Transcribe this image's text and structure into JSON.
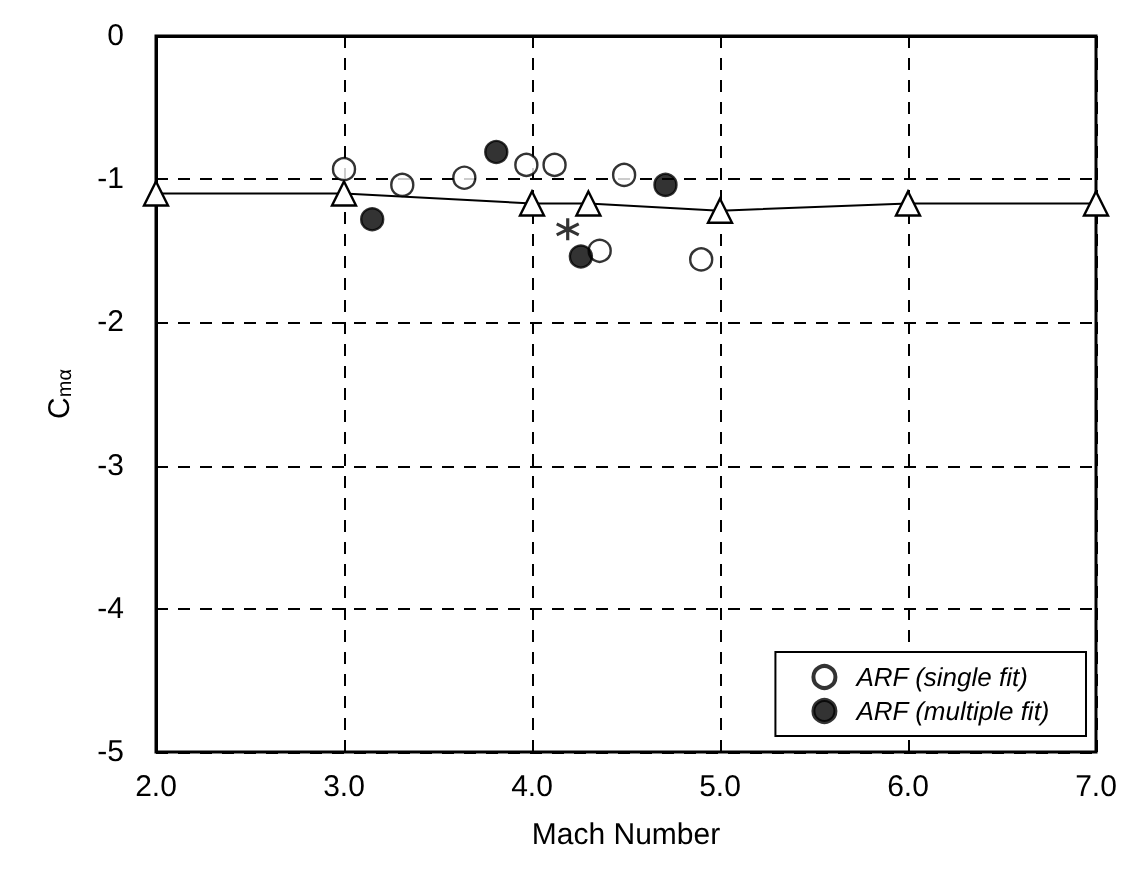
{
  "chart_data": {
    "type": "scatter",
    "xlabel": "Mach Number",
    "ylabel": "C$_{mα}$",
    "xlim": [
      2,
      7
    ],
    "ylim": [
      -5,
      0
    ],
    "xticks": [
      {
        "value": 2,
        "label": "2.0"
      },
      {
        "value": 3,
        "label": "3.0"
      },
      {
        "value": 4,
        "label": "4.0"
      },
      {
        "value": 5,
        "label": "5.0"
      },
      {
        "value": 6,
        "label": "6.0"
      },
      {
        "value": 7,
        "label": "7.0"
      }
    ],
    "yticks": [
      -5,
      -4,
      -3,
      -2,
      -1,
      0
    ],
    "grid": true,
    "legend": "bottom right",
    "series": [
      {
        "name": "ARF (single fit)",
        "color": "#ffffff",
        "marker": "circle",
        "x": [
          3.0,
          3.31,
          3.64,
          3.97,
          4.12,
          4.49,
          4.36,
          4.9
        ],
        "values": [
          -0.93,
          -1.04,
          -0.99,
          -0.9,
          -0.9,
          -0.97,
          -1.5,
          -1.56
        ]
      },
      {
        "name": "ARF (multiple fit)",
        "color": "#000000",
        "marker": "circle",
        "x": [
          3.15,
          3.81,
          4.26,
          4.71
        ],
        "values": [
          -1.28,
          -0.81,
          -1.54,
          -1.04
        ]
      },
      {
        "type": "line",
        "color": "#000000",
        "marker": "triangle",
        "line_style": "solid",
        "x": [
          2,
          3,
          4,
          4.3,
          5,
          6,
          7
        ],
        "values": [
          -1.1,
          -1.1,
          -1.17,
          -1.17,
          -1.22,
          -1.17,
          -1.17
        ]
      },
      {
        "color": "#000000",
        "marker": "cross",
        "x": [
          4.19
        ],
        "values": [
          -1.35
        ]
      }
    ]
  }
}
